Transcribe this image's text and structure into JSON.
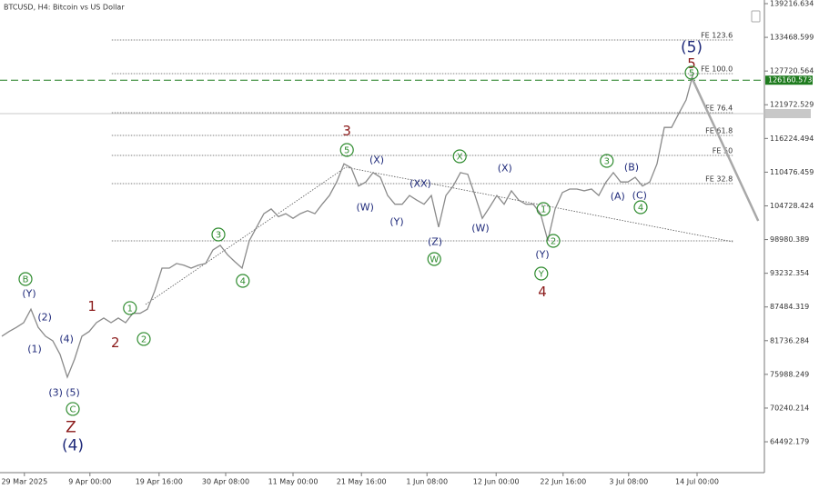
{
  "chart_data": {
    "type": "line",
    "title": "BTCUSD, H4:  Bitcoin vs US Dollar",
    "xlim": [
      -0.25,
      104.75
    ],
    "ylim": [
      59228,
      139837
    ],
    "yticks": [
      139216.634,
      133468.599,
      127720.564,
      121972.529,
      116224.494,
      110476.459,
      104728.424,
      98980.389,
      93232.354,
      87484.319,
      81736.284,
      75988.249,
      70240.214,
      64492.179
    ],
    "xticks": [
      {
        "value": 3.1,
        "label": "29 Mar 2025"
      },
      {
        "value": 12.1,
        "label": "9 Apr 00:00"
      },
      {
        "value": 21.6,
        "label": "19 Apr 16:00"
      },
      {
        "value": 30.75,
        "label": "30 Apr 08:00"
      },
      {
        "value": 40,
        "label": "11 May 00:00"
      },
      {
        "value": 49.4,
        "label": "21 May 16:00"
      },
      {
        "value": 58.4,
        "label": "1 Jun 08:00"
      },
      {
        "value": 67.9,
        "label": "12 Jun 00:00"
      },
      {
        "value": 77.1,
        "label": "22 Jun 16:00"
      },
      {
        "value": 86.1,
        "label": "3 Jul 08:00"
      },
      {
        "value": 95.5,
        "label": "14 Jul 00:00"
      }
    ],
    "series": [
      {
        "name": "BTCUSD",
        "color": "#8a8a8a",
        "x": [
          0,
          1,
          2,
          3,
          4,
          5,
          6,
          7,
          8,
          9,
          10,
          11,
          12,
          13,
          14,
          15,
          16,
          17,
          18,
          19,
          20,
          21,
          22,
          23,
          24,
          25,
          26,
          27,
          28,
          29,
          30,
          31,
          32,
          33,
          34,
          35,
          36,
          37,
          38,
          39,
          40,
          41,
          42,
          43,
          44,
          45,
          46,
          47,
          48,
          49,
          50,
          51,
          52,
          53,
          54,
          55,
          56,
          57,
          58,
          59,
          60,
          61,
          62,
          63,
          64,
          65,
          66,
          67,
          68,
          69,
          70,
          71,
          72,
          73,
          74,
          75,
          76,
          77,
          78,
          79,
          80,
          81,
          82,
          83,
          84,
          85,
          86,
          87,
          88,
          89,
          90,
          91,
          92,
          93,
          94,
          95
        ],
        "values": [
          82500,
          83300,
          84000,
          84800,
          87100,
          84000,
          82500,
          81700,
          79400,
          75500,
          78600,
          82500,
          83300,
          84800,
          85600,
          84800,
          85600,
          84800,
          86400,
          86400,
          87100,
          90200,
          94100,
          94100,
          94900,
          94600,
          94100,
          94600,
          94900,
          97200,
          98000,
          96400,
          95200,
          94100,
          98800,
          101100,
          103400,
          104200,
          102900,
          103400,
          102600,
          103400,
          103900,
          103400,
          105000,
          106500,
          108800,
          111900,
          111200,
          108100,
          108800,
          110400,
          109600,
          106500,
          105000,
          105000,
          106500,
          105700,
          105000,
          106500,
          101100,
          106500,
          108100,
          110400,
          110100,
          106500,
          102600,
          104500,
          106500,
          105000,
          107300,
          105700,
          105000,
          105000,
          103400,
          98800,
          104200,
          107000,
          107600,
          107600,
          107300,
          107600,
          106500,
          108800,
          110400,
          108800,
          108800,
          109600,
          108100,
          108800,
          111900,
          118100,
          118100,
          120500,
          122800,
          127400
        ]
      }
    ],
    "price_level": {
      "value": 126160.573,
      "color": "#1e7b1e"
    },
    "current_price": 120462,
    "levels": {
      "x": [
        15.1,
        100.4
      ],
      "items": [
        {
          "label": "FE 123.6",
          "value": 133017
        },
        {
          "label": "FE 100.0",
          "value": 127282
        },
        {
          "label": "FE 76.4",
          "value": 120617
        },
        {
          "label": "FE 61.8",
          "value": 116742
        },
        {
          "label": "FE 50",
          "value": 113332
        },
        {
          "label": "FE 32.8",
          "value": 108527
        },
        {
          "value": 98762
        }
      ]
    },
    "lines": [
      {
        "style": "dotted",
        "x": [
          19.75,
          47.25
        ],
        "y": [
          87912,
          111317
        ]
      },
      {
        "style": "dotted",
        "x": [
          47.25,
          100.4
        ],
        "y": [
          111317,
          98607
        ]
      },
      {
        "style": "forecast",
        "x": [
          94.75,
          103.9
        ],
        "y": [
          126662,
          102172
        ]
      }
    ],
    "annotations": [
      {
        "text": "(5)",
        "x": 94.75,
        "y": 131777,
        "color": "#1f2a7a",
        "big": true
      },
      {
        "text": "5",
        "x": 94.75,
        "y": 128987,
        "color": "#8b1a1a"
      },
      {
        "text": "5",
        "x": 94.75,
        "y": 127437,
        "color": "#2e8b2e",
        "circle": true
      },
      {
        "text": "3",
        "x": 47.4,
        "y": 117517,
        "color": "#8b1a1a"
      },
      {
        "text": "5",
        "x": 47.4,
        "y": 114262,
        "color": "#2e8b2e",
        "circle": true
      },
      {
        "text": "(X)",
        "x": 51.5,
        "y": 112557,
        "color": "#1f2a7a"
      },
      {
        "text": "X",
        "x": 62.9,
        "y": 113177,
        "color": "#2e8b2e",
        "circle": true
      },
      {
        "text": "(X)",
        "x": 69.1,
        "y": 111162,
        "color": "#1f2a7a"
      },
      {
        "text": "(XX)",
        "x": 57.5,
        "y": 108527,
        "color": "#1f2a7a"
      },
      {
        "text": "(W)",
        "x": 49.9,
        "y": 104497,
        "color": "#1f2a7a"
      },
      {
        "text": "(Y)",
        "x": 54.25,
        "y": 102017,
        "color": "#1f2a7a"
      },
      {
        "text": "(Z)",
        "x": 59.5,
        "y": 98607,
        "color": "#1f2a7a"
      },
      {
        "text": "W",
        "x": 59.4,
        "y": 95662,
        "color": "#2e8b2e",
        "circle": true
      },
      {
        "text": "(W)",
        "x": 65.75,
        "y": 100932,
        "color": "#1f2a7a"
      },
      {
        "text": "1",
        "x": 74.4,
        "y": 104187,
        "color": "#2e8b2e",
        "circle": true
      },
      {
        "text": "2",
        "x": 75.75,
        "y": 98762,
        "color": "#2e8b2e",
        "circle": true
      },
      {
        "text": "(Y)",
        "x": 74.25,
        "y": 96437,
        "color": "#1f2a7a"
      },
      {
        "text": "Y",
        "x": 74.1,
        "y": 93182,
        "color": "#2e8b2e",
        "circle": true
      },
      {
        "text": "4",
        "x": 74.25,
        "y": 90082,
        "color": "#8b1a1a"
      },
      {
        "text": "3",
        "x": 83.1,
        "y": 112402,
        "color": "#2e8b2e",
        "circle": true
      },
      {
        "text": "(B)",
        "x": 86.5,
        "y": 111317,
        "color": "#1f2a7a"
      },
      {
        "text": "(A)",
        "x": 84.6,
        "y": 106357,
        "color": "#1f2a7a"
      },
      {
        "text": "(C)",
        "x": 87.6,
        "y": 106512,
        "color": "#1f2a7a"
      },
      {
        "text": "4",
        "x": 87.75,
        "y": 104497,
        "color": "#2e8b2e",
        "circle": true
      },
      {
        "text": "3",
        "x": 29.75,
        "y": 99847,
        "color": "#2e8b2e",
        "circle": true
      },
      {
        "text": "4",
        "x": 33.1,
        "y": 91942,
        "color": "#2e8b2e",
        "circle": true
      },
      {
        "text": "1",
        "x": 12.4,
        "y": 87602,
        "color": "#8b1a1a"
      },
      {
        "text": "1",
        "x": 17.6,
        "y": 87292,
        "color": "#2e8b2e",
        "circle": true
      },
      {
        "text": "2",
        "x": 15.6,
        "y": 81402,
        "color": "#8b1a1a"
      },
      {
        "text": "2",
        "x": 19.5,
        "y": 82022,
        "color": "#2e8b2e",
        "circle": true
      },
      {
        "text": "B",
        "x": 3.25,
        "y": 92252,
        "color": "#2e8b2e",
        "circle": true
      },
      {
        "text": "(Y)",
        "x": 3.75,
        "y": 89772,
        "color": "#1f2a7a"
      },
      {
        "text": "(2)",
        "x": 5.9,
        "y": 85742,
        "color": "#1f2a7a"
      },
      {
        "text": "(1)",
        "x": 4.5,
        "y": 80317,
        "color": "#1f2a7a"
      },
      {
        "text": "(4)",
        "x": 8.9,
        "y": 82022,
        "color": "#1f2a7a"
      },
      {
        "text": "(3)",
        "x": 7.4,
        "y": 72877,
        "color": "#1f2a7a"
      },
      {
        "text": "(5)",
        "x": 9.75,
        "y": 72877,
        "color": "#1f2a7a"
      },
      {
        "text": "C",
        "x": 9.75,
        "y": 70087,
        "color": "#2e8b2e",
        "circle": true
      },
      {
        "text": "Z",
        "x": 9.5,
        "y": 66987,
        "color": "#8b1a1a",
        "big": true
      },
      {
        "text": "(4)",
        "x": 9.75,
        "y": 63887,
        "color": "#1f2a7a",
        "big": true
      }
    ]
  }
}
